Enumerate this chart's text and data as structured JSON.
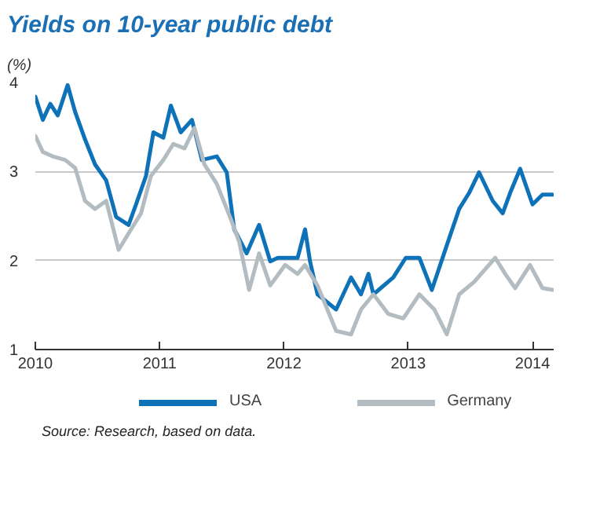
{
  "chart_data": {
    "type": "line",
    "title": "Yields on 10-year public debt",
    "subtitle": "(%)",
    "xlim": [
      2010,
      2014.17
    ],
    "xticks": [
      2010,
      2011,
      2012,
      2013,
      2014
    ],
    "ylim": [
      1,
      4
    ],
    "yticks": [
      1,
      2,
      3,
      4
    ],
    "grid": "y",
    "legend": "bottom",
    "annotations": [
      "Source: Research, based on data."
    ],
    "series": [
      {
        "name": "USA",
        "color": "#0e72b8",
        "x": [
          2010.0,
          2010.06,
          2010.12,
          2010.18,
          2010.26,
          2010.32,
          2010.4,
          2010.48,
          2010.57,
          2010.65,
          2010.75,
          2010.81,
          2010.89,
          2010.95,
          2011.03,
          2011.09,
          2011.17,
          2011.26,
          2011.34,
          2011.46,
          2011.54,
          2011.6,
          2011.7,
          2011.8,
          2011.89,
          2011.95,
          2012.11,
          2012.17,
          2012.21,
          2012.27,
          2012.42,
          2012.54,
          2012.62,
          2012.68,
          2012.72,
          2012.88,
          2012.98,
          2013.09,
          2013.19,
          2013.31,
          2013.41,
          2013.49,
          2013.57,
          2013.68,
          2013.76,
          2013.82,
          2013.9,
          2014.0,
          2014.08,
          2014.16
        ],
        "values": [
          3.84,
          3.58,
          3.76,
          3.63,
          3.97,
          3.67,
          3.36,
          3.08,
          2.9,
          2.49,
          2.4,
          2.63,
          2.95,
          3.44,
          3.38,
          3.74,
          3.44,
          3.58,
          3.13,
          3.17,
          2.99,
          2.35,
          2.08,
          2.4,
          1.99,
          2.03,
          2.03,
          2.35,
          1.99,
          1.62,
          1.45,
          1.81,
          1.62,
          1.85,
          1.62,
          1.81,
          2.03,
          2.03,
          1.67,
          2.17,
          2.58,
          2.76,
          2.99,
          2.67,
          2.53,
          2.76,
          3.03,
          2.63,
          2.74,
          2.74
        ]
      },
      {
        "name": "Germany",
        "color": "#b2bcc1",
        "x": [
          2010.0,
          2010.06,
          2010.14,
          2010.24,
          2010.32,
          2010.4,
          2010.48,
          2010.57,
          2010.67,
          2010.77,
          2010.85,
          2010.93,
          2011.03,
          2011.11,
          2011.2,
          2011.28,
          2011.36,
          2011.46,
          2011.58,
          2011.64,
          2011.72,
          2011.8,
          2011.89,
          2012.01,
          2012.11,
          2012.17,
          2012.27,
          2012.42,
          2012.54,
          2012.62,
          2012.72,
          2012.84,
          2012.96,
          2013.09,
          2013.21,
          2013.31,
          2013.41,
          2013.53,
          2013.7,
          2013.78,
          2013.86,
          2013.98,
          2014.08,
          2014.16
        ],
        "values": [
          3.4,
          3.22,
          3.17,
          3.13,
          3.04,
          2.67,
          2.58,
          2.67,
          2.12,
          2.35,
          2.53,
          2.95,
          3.13,
          3.31,
          3.26,
          3.49,
          3.08,
          2.86,
          2.44,
          2.21,
          1.67,
          2.08,
          1.72,
          1.95,
          1.85,
          1.95,
          1.72,
          1.21,
          1.17,
          1.45,
          1.62,
          1.4,
          1.35,
          1.62,
          1.45,
          1.17,
          1.62,
          1.76,
          2.03,
          1.85,
          1.69,
          1.95,
          1.69,
          1.67
        ]
      }
    ]
  }
}
